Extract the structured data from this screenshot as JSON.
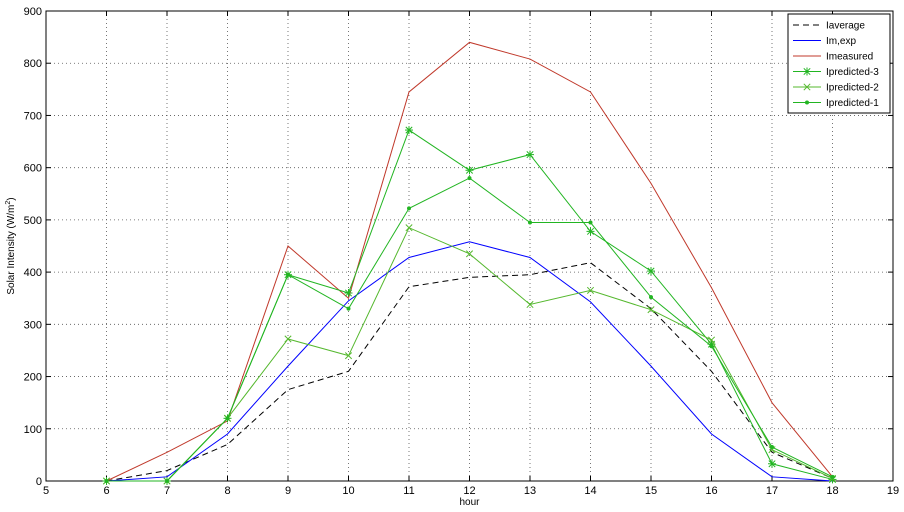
{
  "chart_data": {
    "type": "line",
    "title": "",
    "xlabel": "hour",
    "ylabel": "Solar Intensity (W/m",
    "ylabel_sup": "2",
    "ylabel_close": ")",
    "xlim": [
      5,
      19
    ],
    "ylim": [
      0,
      900
    ],
    "xticks": [
      5,
      6,
      7,
      8,
      9,
      10,
      11,
      12,
      13,
      14,
      15,
      16,
      17,
      18,
      19
    ],
    "yticks": [
      0,
      100,
      200,
      300,
      400,
      500,
      600,
      700,
      800,
      900
    ],
    "grid": true,
    "legend_position": "top-right",
    "x": [
      6,
      7,
      8,
      9,
      10,
      11,
      12,
      13,
      14,
      15,
      16,
      17,
      18
    ],
    "series": [
      {
        "name": "Iaverage",
        "color": "#000000",
        "dash": "dashed",
        "marker": "none",
        "values": [
          0,
          20,
          70,
          175,
          210,
          372,
          390,
          395,
          418,
          330,
          210,
          55,
          5
        ]
      },
      {
        "name": "Im,exp",
        "color": "#0000ff",
        "dash": "solid",
        "marker": "none",
        "values": [
          0,
          8,
          90,
          220,
          345,
          428,
          458,
          428,
          343,
          220,
          90,
          8,
          0
        ]
      },
      {
        "name": "Imeasured",
        "color": "#c0392b",
        "dash": "solid",
        "marker": "none",
        "values": [
          0,
          55,
          115,
          450,
          350,
          745,
          840,
          808,
          745,
          570,
          370,
          150,
          8
        ]
      },
      {
        "name": "Ipredicted-3",
        "color": "#22b522",
        "dash": "solid",
        "marker": "star",
        "values": [
          0,
          0,
          120,
          395,
          360,
          672,
          595,
          625,
          478,
          402,
          262,
          33,
          3
        ]
      },
      {
        "name": "Ipredicted-2",
        "color": "#55b82e",
        "dash": "solid",
        "marker": "x",
        "values": [
          0,
          0,
          120,
          272,
          240,
          485,
          435,
          338,
          365,
          328,
          270,
          60,
          5
        ]
      },
      {
        "name": "Ipredicted-1",
        "color": "#22b522",
        "dash": "solid",
        "marker": "dot",
        "values": [
          0,
          0,
          120,
          395,
          330,
          522,
          580,
          495,
          495,
          352,
          258,
          65,
          8
        ]
      }
    ]
  }
}
